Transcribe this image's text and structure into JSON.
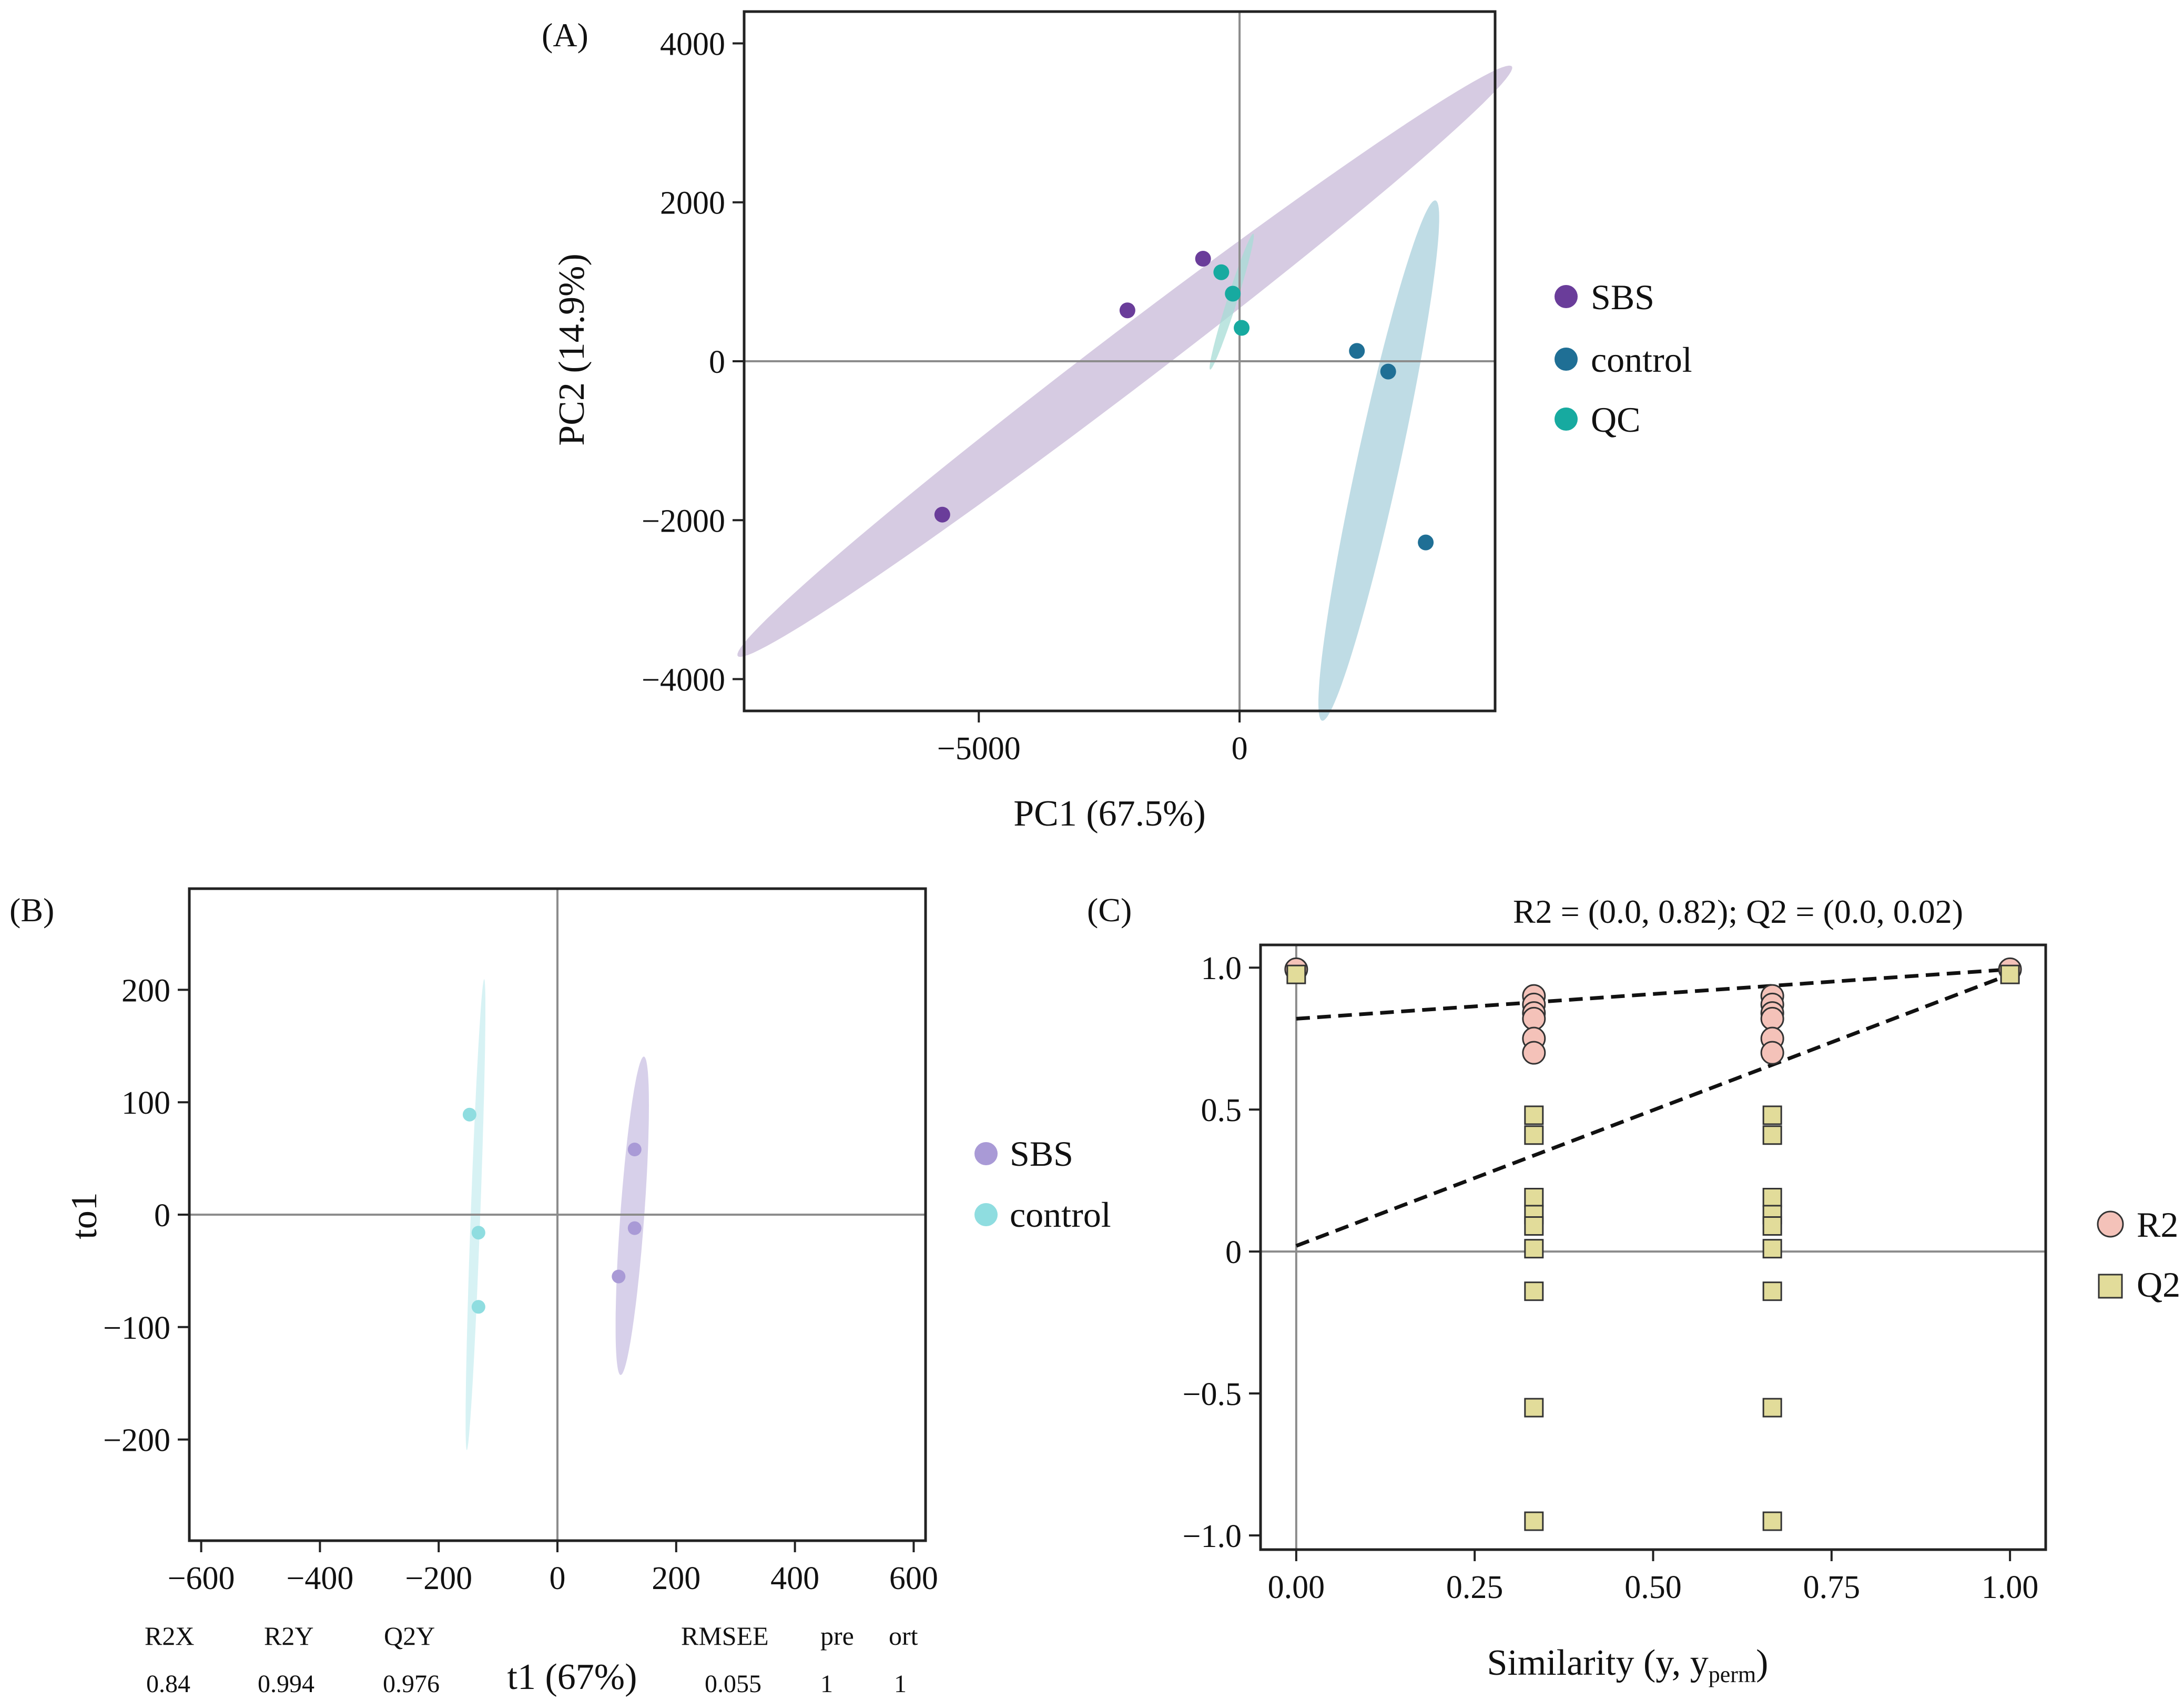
{
  "figure": {
    "colors": {
      "SBS_A": "#6a3d9a",
      "control_A": "#1f6f95",
      "QC_A": "#17aaa0",
      "SBS_B": "#a99ad6",
      "control_B": "#8fdde0",
      "R2": "#f4c2b9",
      "Q2": "#e2dc9a",
      "ellipse_SBS_A": "#c8b9d8",
      "ellipse_control_A": "#a9d0dc",
      "ellipse_QC_A": "#a7dcd5",
      "ellipse_SBS_B": "#c9c0e3",
      "ellipse_control_B": "#c9eef0"
    }
  },
  "panelA": {
    "label": "(A)",
    "legend": [
      "SBS",
      "control",
      "QC"
    ]
  },
  "panelB": {
    "label": "(B)",
    "legend": [
      "SBS",
      "control"
    ],
    "stats": {
      "headers": [
        "R2X",
        "R2Y",
        "Q2Y",
        "RMSEE",
        "pre",
        "ort"
      ],
      "values": [
        "0.84",
        "0.994",
        "0.976",
        "0.055",
        "1",
        "1"
      ]
    }
  },
  "panelC": {
    "label": "(C)",
    "legend": [
      "R2",
      "Q2"
    ],
    "xlabel_main": "Similarity (y, y",
    "xlabel_sub": "perm",
    "xlabel_end": ")"
  },
  "chart_data": [
    {
      "type": "scatter",
      "title": "",
      "xlabel": "PC1 (67.5%)",
      "ylabel": "PC2 (14.9%)",
      "xlim": [
        -9500,
        4900
      ],
      "ylim": [
        -4400,
        4400
      ],
      "xticks": [
        -5000,
        0
      ],
      "yticks": [
        -4000,
        -2000,
        0,
        2000,
        4000
      ],
      "xtick_labels": [
        "−5000",
        "0"
      ],
      "ytick_labels": [
        "−4000",
        "−2000",
        "0",
        "2000",
        "4000"
      ],
      "legend_position": "right",
      "series": [
        {
          "name": "SBS",
          "points": [
            [
              -5700,
              -1930
            ],
            [
              -2150,
              640
            ],
            [
              -700,
              1290
            ]
          ],
          "ellipse": {
            "cx": -2200,
            "cy": 0,
            "rx": 8300,
            "ry": 400,
            "angle_deg": 26.5
          }
        },
        {
          "name": "control",
          "points": [
            [
              2250,
              130
            ],
            [
              2850,
              -130
            ],
            [
              3570,
              -2280
            ]
          ],
          "ellipse": {
            "cx": 2670,
            "cy": -1250,
            "rx": 3450,
            "ry": 400,
            "angle_deg": 71.5
          }
        },
        {
          "name": "QC",
          "points": [
            [
              -350,
              1120
            ],
            [
              -130,
              850
            ],
            [
              40,
              420
            ]
          ],
          "ellipse": {
            "cx": -150,
            "cy": 750,
            "rx": 950,
            "ry": 90,
            "angle_deg": 64
          }
        }
      ]
    },
    {
      "type": "scatter",
      "title": "",
      "xlabel": "t1 (67%)",
      "ylabel": "to1",
      "xlim": [
        -620,
        620
      ],
      "ylim": [
        -290,
        290
      ],
      "xticks": [
        -600,
        -400,
        -200,
        0,
        200,
        400,
        600
      ],
      "yticks": [
        -200,
        -100,
        0,
        100,
        200
      ],
      "xtick_labels": [
        "−600",
        "−400",
        "−200",
        "0",
        "200",
        "400",
        "600"
      ],
      "ytick_labels": [
        "−200",
        "−100",
        "0",
        "100",
        "200"
      ],
      "legend_position": "right",
      "series": [
        {
          "name": "SBS",
          "points": [
            [
              130,
              58
            ],
            [
              130,
              -12
            ],
            [
              103,
              -55
            ]
          ],
          "ellipse": {
            "cx": 126,
            "cy": -1,
            "rx": 143,
            "ry": 20,
            "angle_deg": 82
          }
        },
        {
          "name": "control",
          "points": [
            [
              -148,
              89
            ],
            [
              -133,
              -16
            ],
            [
              -133,
              -82
            ]
          ],
          "ellipse": {
            "cx": -138,
            "cy": 0,
            "rx": 210,
            "ry": 8,
            "angle_deg": 86
          }
        }
      ]
    },
    {
      "type": "scatter",
      "title": "R2 = (0.0, 0.82); Q2 = (0.0, 0.02)",
      "xlabel": "Similarity (y, y_perm)",
      "ylabel": "",
      "xlim": [
        -0.05,
        1.05
      ],
      "ylim": [
        -1.05,
        1.08
      ],
      "xticks": [
        0,
        0.25,
        0.5,
        0.75,
        1.0
      ],
      "yticks": [
        -1.0,
        -0.5,
        0,
        0.5,
        1.0
      ],
      "xtick_labels": [
        "0.00",
        "0.25",
        "0.50",
        "0.75",
        "1.00"
      ],
      "ytick_labels": [
        "−1.0",
        "−0.5",
        "0",
        "0.5",
        "1.0"
      ],
      "legend_position": "right",
      "series": [
        {
          "name": "R2",
          "points": [
            [
              0,
              0.994
            ],
            [
              0.333,
              0.9
            ],
            [
              0.333,
              0.87
            ],
            [
              0.333,
              0.84
            ],
            [
              0.333,
              0.82
            ],
            [
              0.333,
              0.75
            ],
            [
              0.333,
              0.7
            ],
            [
              0.667,
              0.9
            ],
            [
              0.667,
              0.87
            ],
            [
              0.667,
              0.84
            ],
            [
              0.667,
              0.82
            ],
            [
              0.667,
              0.75
            ],
            [
              0.667,
              0.7
            ],
            [
              1.0,
              0.994
            ]
          ]
        },
        {
          "name": "Q2",
          "points": [
            [
              0,
              0.976
            ],
            [
              0.333,
              0.48
            ],
            [
              0.333,
              0.41
            ],
            [
              0.333,
              0.19
            ],
            [
              0.333,
              0.13
            ],
            [
              0.333,
              0.09
            ],
            [
              0.333,
              0.01
            ],
            [
              0.333,
              -0.14
            ],
            [
              0.333,
              -0.55
            ],
            [
              0.333,
              -0.95
            ],
            [
              0.667,
              0.48
            ],
            [
              0.667,
              0.41
            ],
            [
              0.667,
              0.19
            ],
            [
              0.667,
              0.13
            ],
            [
              0.667,
              0.09
            ],
            [
              0.667,
              0.01
            ],
            [
              0.667,
              -0.14
            ],
            [
              0.667,
              -0.55
            ],
            [
              0.667,
              -0.95
            ],
            [
              1.0,
              0.976
            ]
          ]
        }
      ],
      "regression_lines": [
        {
          "name": "R2",
          "from": [
            0,
            0.82
          ],
          "to": [
            1.0,
            0.994
          ]
        },
        {
          "name": "Q2",
          "from": [
            0,
            0.02
          ],
          "to": [
            1.0,
            0.976
          ]
        }
      ]
    }
  ]
}
